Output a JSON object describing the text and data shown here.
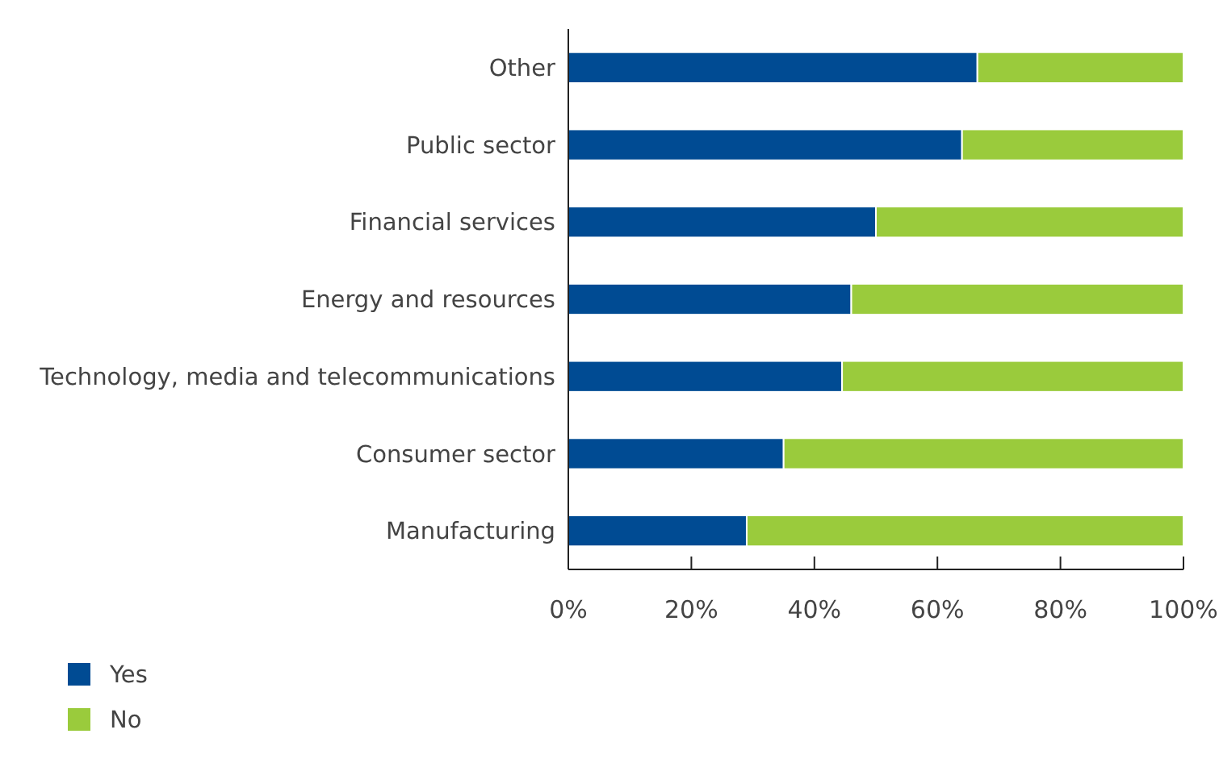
{
  "chart_data": {
    "type": "bar",
    "orientation": "horizontal",
    "stacked": true,
    "categories": [
      "Other",
      "Public sector",
      "Financial services",
      "Energy and resources",
      "Technology, media and telecommunications",
      "Consumer sector",
      "Manufacturing"
    ],
    "series": [
      {
        "name": "Yes",
        "color": "#004b93",
        "values": [
          66.5,
          64,
          50,
          46,
          44.5,
          35,
          29
        ]
      },
      {
        "name": "No",
        "color": "#9acb3c",
        "values": [
          33.5,
          36,
          50,
          54,
          55.5,
          65,
          71
        ]
      }
    ],
    "xlim": [
      0,
      100
    ],
    "xticks": [
      {
        "value": 0,
        "label": "0%"
      },
      {
        "value": 20,
        "label": "20%"
      },
      {
        "value": 40,
        "label": "40%"
      },
      {
        "value": 60,
        "label": "60%"
      },
      {
        "value": 80,
        "label": "80%"
      },
      {
        "value": 100,
        "label": "100%"
      }
    ],
    "grid": false,
    "legend": "bottom left"
  }
}
